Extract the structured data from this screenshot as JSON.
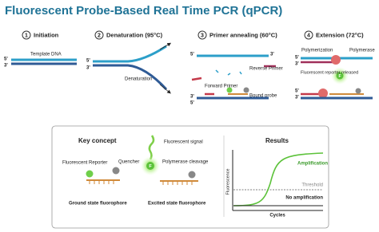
{
  "title": "Fluorescent Probe-Based Real Time PCR (qPCR)",
  "steps": [
    {
      "number": "1",
      "label": "Initiation"
    },
    {
      "number": "2",
      "label": "Denaturation (95°C)"
    },
    {
      "number": "3",
      "label": "Primer annealing (60°C)"
    },
    {
      "number": "4",
      "label": "Extension (72°C)"
    }
  ],
  "panel1": {
    "end_top": "5'",
    "end_bottom": "3'",
    "label": "Template DNA"
  },
  "panel2": {
    "end_top": "5'",
    "end_bottom": "3'",
    "label": "Denaturation"
  },
  "panel3": {
    "end_top": "5'",
    "end_top2": "3'",
    "end_bottom": "3'",
    "end_bottom2": "5'",
    "reverse_primer": "Reverse Primer",
    "forward_primer": "Forward Primer",
    "bound_probe": "Bound probe"
  },
  "panel4": {
    "polymerization": "Polymerization",
    "polymerase": "Polymerase",
    "end_top": "5'",
    "end_top2": "3'",
    "fluor": "F",
    "reporter_released": "Fluorescent reporter released",
    "end_bottom": "5'",
    "end_bottom2": "3'"
  },
  "key_concept": {
    "heading": "Key concept",
    "reporter": "Fluorescent Reporter",
    "quencher": "Quencher",
    "ground_state": "Ground state fluorophore",
    "fluor": "F",
    "signal": "Fluorescent signal",
    "cleavage": "Polymerase cleavage",
    "excited_state": "Excited state fluorophore"
  },
  "results": {
    "heading": "Results",
    "y_label": "Fluorescence",
    "amplification": "Amplification",
    "threshold": "Threshold",
    "no_amplification": "No amplification",
    "x_label": "Cycles"
  }
}
